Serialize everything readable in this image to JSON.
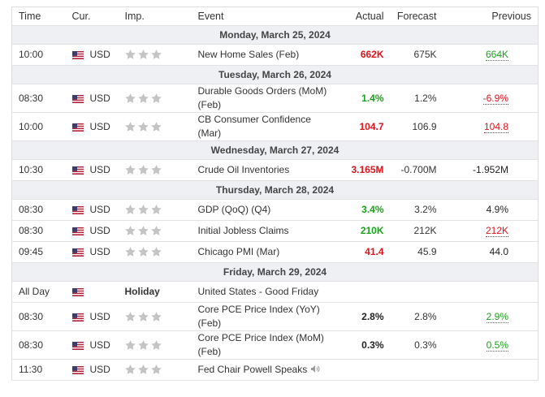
{
  "header": {
    "columns": [
      "Time",
      "Cur.",
      "Imp.",
      "Event",
      "Actual",
      "Forecast",
      "Previous"
    ]
  },
  "days": [
    {
      "date": "Monday, March 25, 2024",
      "events": [
        {
          "time": "10:00",
          "currency": "USD",
          "event": "New Home Sales (Feb)",
          "actual": "662K",
          "actual_trend": "negative",
          "forecast": "675K",
          "previous": "664K",
          "previous_trend": "positive"
        }
      ]
    },
    {
      "date": "Tuesday, March 26, 2024",
      "events": [
        {
          "time": "08:30",
          "currency": "USD",
          "event": "Durable Goods Orders (MoM) (Feb)",
          "actual": "1.4%",
          "actual_trend": "positive",
          "forecast": "1.2%",
          "previous": "-6.9%",
          "previous_trend": "negative"
        },
        {
          "time": "10:00",
          "currency": "USD",
          "event": "CB Consumer Confidence (Mar)",
          "actual": "104.7",
          "actual_trend": "negative",
          "forecast": "106.9",
          "previous": "104.8",
          "previous_trend": "negative"
        }
      ]
    },
    {
      "date": "Wednesday, March 27, 2024",
      "events": [
        {
          "time": "10:30",
          "currency": "USD",
          "event": "Crude Oil Inventories",
          "actual": "3.165M",
          "actual_trend": "negative",
          "forecast": "-0.700M",
          "previous": "-1.952M",
          "previous_trend": "neutral"
        }
      ]
    },
    {
      "date": "Thursday, March 28, 2024",
      "events": [
        {
          "time": "08:30",
          "currency": "USD",
          "event": "GDP (QoQ) (Q4)",
          "actual": "3.4%",
          "actual_trend": "positive",
          "forecast": "3.2%",
          "previous": "4.9%",
          "previous_trend": "neutral"
        },
        {
          "time": "08:30",
          "currency": "USD",
          "event": "Initial Jobless Claims",
          "actual": "210K",
          "actual_trend": "positive",
          "forecast": "212K",
          "previous": "212K",
          "previous_trend": "negative"
        },
        {
          "time": "09:45",
          "currency": "USD",
          "event": "Chicago PMI (Mar)",
          "actual": "41.4",
          "actual_trend": "negative",
          "forecast": "45.9",
          "previous": "44.0",
          "previous_trend": "neutral"
        }
      ]
    },
    {
      "date": "Friday, March 29, 2024",
      "events": [
        {
          "time": "All Day",
          "importance": "Holiday",
          "event": "United States - Good Friday"
        },
        {
          "time": "08:30",
          "currency": "USD",
          "event": "Core PCE Price Index (YoY) (Feb)",
          "actual": "2.8%",
          "actual_trend": "neutral",
          "forecast": "2.8%",
          "previous": "2.9%",
          "previous_trend": "positive"
        },
        {
          "time": "08:30",
          "currency": "USD",
          "event": "Core PCE Price Index (MoM) (Feb)",
          "actual": "0.3%",
          "actual_trend": "neutral",
          "forecast": "0.3%",
          "previous": "0.5%",
          "previous_trend": "positive"
        },
        {
          "time": "11:30",
          "currency": "USD",
          "event": "Fed Chair Powell Speaks",
          "speech": true
        }
      ]
    }
  ]
}
